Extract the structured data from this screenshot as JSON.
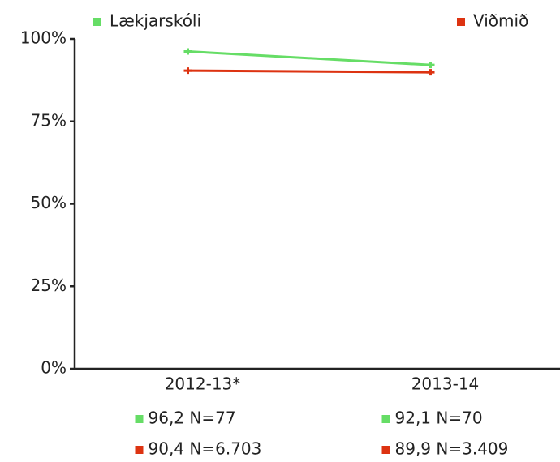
{
  "chart_data": {
    "type": "line",
    "categories": [
      "2012-13*",
      "2013-14"
    ],
    "series": [
      {
        "name": "Lækjarskóli",
        "color": "#66dd66",
        "values": [
          96.2,
          92.1
        ],
        "value_labels": [
          "96,2 N=77",
          "92,1 N=70"
        ]
      },
      {
        "name": "Viðmið",
        "color": "#dd3311",
        "values": [
          90.4,
          89.9
        ],
        "value_labels": [
          "90,4 N=6.703",
          "89,9 N=3.409"
        ]
      }
    ],
    "ylim": [
      0,
      100
    ],
    "yticks": [
      {
        "value": 0,
        "label": "0%"
      },
      {
        "value": 25,
        "label": "25%"
      },
      {
        "value": 50,
        "label": "50%"
      },
      {
        "value": 75,
        "label": "75%"
      },
      {
        "value": 100,
        "label": "100%"
      }
    ],
    "grid": false
  }
}
